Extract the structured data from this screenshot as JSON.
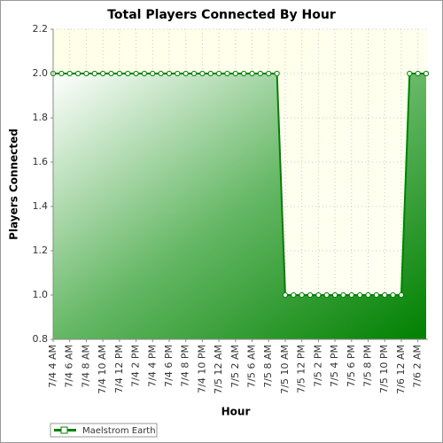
{
  "chart_data": {
    "type": "area-line",
    "title": "Total Players Connected By Hour",
    "x_label": "Hour",
    "y_label": "Players Connected",
    "categories": [
      "7/4 4 AM",
      null,
      "7/4 6 AM",
      null,
      "7/4 8 AM",
      null,
      "7/4 10 AM",
      null,
      "7/4 12 PM",
      null,
      "7/4 2 PM",
      null,
      "7/4 4 PM",
      null,
      "7/4 6 PM",
      null,
      "7/4 8 PM",
      null,
      "7/4 10 PM",
      null,
      "7/5 12 AM",
      null,
      "7/5 2 AM",
      null,
      "7/5 6 AM",
      null,
      "7/5 8 AM",
      null,
      "7/5 10 AM",
      null,
      "7/5 12 PM",
      null,
      "7/5 2 PM",
      null,
      "7/5 4 PM",
      null,
      "7/5 6 PM",
      null,
      "7/5 8 PM",
      null,
      "7/5 10 PM",
      null,
      "7/6 12 AM",
      null,
      "7/6 2 AM",
      null
    ],
    "series": [
      {
        "name": "Maelstrom Earth",
        "color": "#008000",
        "values": [
          2,
          2,
          2,
          2,
          2,
          2,
          2,
          2,
          2,
          2,
          2,
          2,
          2,
          2,
          2,
          2,
          2,
          2,
          2,
          2,
          2,
          2,
          2,
          2,
          2,
          2,
          2,
          2,
          1,
          1,
          1,
          1,
          1,
          1,
          1,
          1,
          1,
          1,
          1,
          1,
          1,
          1,
          1,
          2,
          2,
          2
        ]
      }
    ],
    "ylim": [
      0.8,
      2.2
    ],
    "yticks": [
      0.8,
      {
        "value": 1,
        "label": "1.0"
      },
      1.2,
      1.4,
      1.6,
      1.8,
      {
        "value": 2,
        "label": "2.0"
      },
      2.2
    ],
    "grid": true,
    "legend": "bottom-left"
  }
}
